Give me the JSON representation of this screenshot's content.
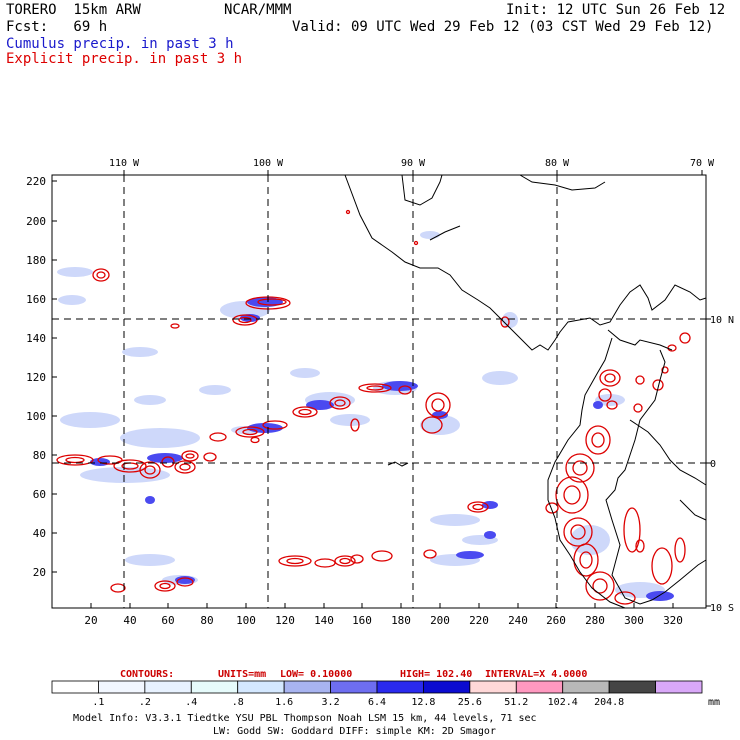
{
  "header": {
    "model": "TORERO  15km ARW",
    "org": "NCAR/MMM",
    "init": "Init: 12 UTC Sun 26 Feb 12",
    "fcst": "Fcst:   69 h",
    "valid": "Valid: 09 UTC Wed 29 Feb 12 (03 CST Wed 29 Feb 12)",
    "legend_cumulus": "Cumulus precip. in past 3 h",
    "legend_explicit": "Explicit precip. in past 3 h"
  },
  "colors": {
    "cumulus": "#1a1acc",
    "explicit": "#dd0000",
    "contour_text": "#cc0000"
  },
  "map": {
    "top_lon_labels": [
      "110 W",
      "100 W",
      "90 W",
      "80 W",
      "70 W"
    ],
    "left_y_ticks": [
      "220",
      "200",
      "180",
      "160",
      "140",
      "120",
      "100",
      "80",
      "60",
      "40",
      "20"
    ],
    "bottom_x_ticks": [
      "20",
      "40",
      "60",
      "80",
      "100",
      "120",
      "140",
      "160",
      "180",
      "200",
      "220",
      "240",
      "260",
      "280",
      "300",
      "320"
    ],
    "right_lat_labels": [
      "10 N",
      "0",
      "10 S"
    ]
  },
  "contour_info": {
    "contours": "CONTOURS:",
    "units": "UNITS=mm",
    "low": "LOW= 0.10000",
    "high": "HIGH=  102.40",
    "interval": "INTERVAL=X  4.0000"
  },
  "colorbar": {
    "labels": [
      ".1",
      ".2",
      ".4",
      ".8",
      "1.6",
      "3.2",
      "6.4",
      "12.8",
      "25.6",
      "51.2",
      "102.4",
      "204.8"
    ],
    "unit": "mm",
    "colors": [
      "#ffffff",
      "#f2f7ff",
      "#e8f2ff",
      "#e6fbfb",
      "#d4e8ff",
      "#a8b4f0",
      "#6e6ef0",
      "#2a2aee",
      "#0b0bd0",
      "#ffd8d8",
      "#ff99c0",
      "#b8b8b8",
      "#454545",
      "#d9a8f8"
    ]
  },
  "footer": {
    "line1": "Model Info: V3.3.1    Tiedtke YSU PBL  Thompson    Noah LSM  15 km,   44 levels,   71 sec",
    "line2": "LW: Godd SW: Goddard DIFF: simple KM: 2D Smagor"
  }
}
